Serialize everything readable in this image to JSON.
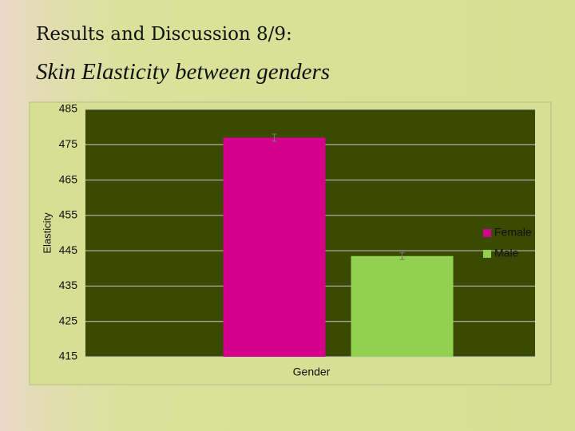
{
  "chart_data": {
    "type": "bar",
    "title": "Results and Discussion 8/9:",
    "subtitle": "Skin Elasticity between genders",
    "x_label": "Gender",
    "y_label": "Elasticity",
    "categories": [
      null
    ],
    "series": [
      {
        "name": "Female",
        "color": "#d4008c",
        "values": [
          477
        ],
        "errors": [
          1
        ]
      },
      {
        "name": "Male",
        "color": "#92d050",
        "values": [
          443.5
        ],
        "errors": [
          1
        ]
      }
    ],
    "ylim": [
      415,
      485
    ],
    "yticks": [
      415,
      425,
      435,
      445,
      455,
      465,
      475,
      485
    ],
    "grid": true
  }
}
